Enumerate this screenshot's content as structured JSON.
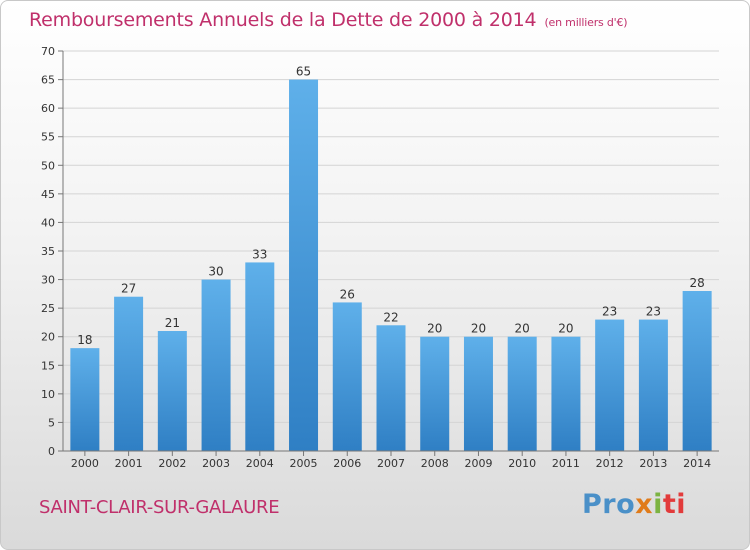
{
  "chart_data": {
    "type": "bar",
    "title": "Remboursements Annuels de la Dette de 2000 à 2014",
    "subtitle": "(en milliers d'€)",
    "categories": [
      "2000",
      "2001",
      "2002",
      "2003",
      "2004",
      "2005",
      "2006",
      "2007",
      "2008",
      "2009",
      "2010",
      "2011",
      "2012",
      "2013",
      "2014"
    ],
    "values": [
      18,
      27,
      21,
      30,
      33,
      65,
      26,
      22,
      20,
      20,
      20,
      20,
      23,
      23,
      28
    ],
    "ylim": [
      0,
      70
    ],
    "yticks": [
      0,
      5,
      10,
      15,
      20,
      25,
      30,
      35,
      40,
      45,
      50,
      55,
      60,
      65,
      70
    ],
    "grid": true,
    "bar_color": "#4a9fdf"
  },
  "commune": "SAINT-CLAIR-SUR-GALAURE",
  "logo": {
    "part1": "Pro",
    "part2": "x",
    "part3": "i",
    "part4": "ti"
  },
  "colors": {
    "accent": "#c0306b",
    "bar_top": "#5fb0ea",
    "bar_bottom": "#2f7fc4"
  }
}
